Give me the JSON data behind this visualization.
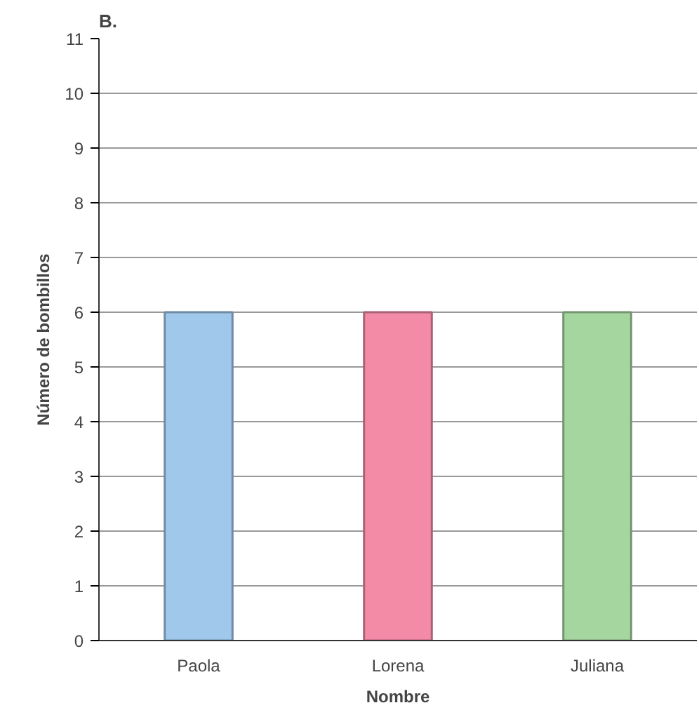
{
  "chart_data": {
    "type": "bar",
    "title": "B.",
    "xlabel": "Nombre",
    "ylabel": "Número de bombillos",
    "categories": [
      "Paola",
      "Lorena",
      "Juliana"
    ],
    "values": [
      6,
      6,
      6
    ],
    "colors": [
      "#9fc8eb",
      "#f48ba6",
      "#a6d6a0"
    ],
    "ylim": [
      0,
      11
    ],
    "yticks": [
      0,
      1,
      2,
      3,
      4,
      5,
      6,
      7,
      8,
      9,
      10,
      11
    ],
    "grid": "y"
  }
}
